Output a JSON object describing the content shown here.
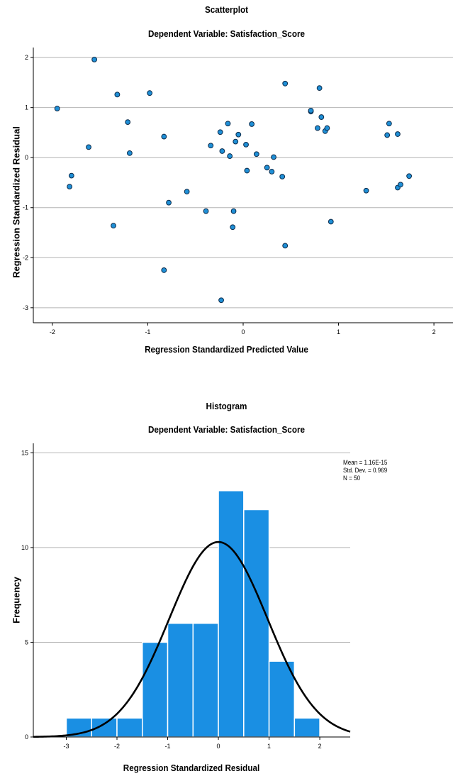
{
  "scatterplot": {
    "title": "Scatterplot",
    "subtitle": "Dependent Variable: Satisfaction_Score",
    "xlabel": "Regression Standardized Predicted Value",
    "ylabel": "Regression Standardized Residual"
  },
  "histogram": {
    "title": "Histogram",
    "subtitle": "Dependent Variable: Satisfaction_Score",
    "xlabel": "Regression Standardized Residual",
    "ylabel": "Frequency",
    "stats": {
      "mean": "Mean = 1.16E-15",
      "std": "Std. Dev. = 0.969",
      "n": "N = 50"
    }
  },
  "colors": {
    "point_fill": "#1f8fd6",
    "point_stroke": "#0b2a4a",
    "bar_fill": "#1a8fe3",
    "bar_stroke": "#ffffff",
    "gridline": "#b4b4b4",
    "curve": "#000000"
  },
  "chart_data": [
    {
      "type": "scatter",
      "title": "Scatterplot",
      "subtitle": "Dependent Variable: Satisfaction_Score",
      "xlabel": "Regression Standardized Predicted Value",
      "ylabel": "Regression Standardized Residual",
      "xlim": [
        -2.2,
        2.2
      ],
      "ylim": [
        -3.3,
        2.2
      ],
      "xticks": [
        -2,
        -1,
        0,
        1,
        2
      ],
      "yticks": [
        -3,
        -2,
        -1,
        0,
        1,
        2
      ],
      "grid": "horizontal",
      "points": [
        {
          "x": -1.95,
          "y": 0.98
        },
        {
          "x": -1.56,
          "y": 1.96
        },
        {
          "x": -1.8,
          "y": -0.36
        },
        {
          "x": -1.82,
          "y": -0.58
        },
        {
          "x": -1.62,
          "y": 0.21
        },
        {
          "x": -1.32,
          "y": 1.26
        },
        {
          "x": -1.21,
          "y": 0.71
        },
        {
          "x": -1.19,
          "y": 0.09
        },
        {
          "x": -1.36,
          "y": -1.36
        },
        {
          "x": -0.98,
          "y": 1.29
        },
        {
          "x": -0.83,
          "y": 0.42
        },
        {
          "x": -0.83,
          "y": -2.25
        },
        {
          "x": -0.78,
          "y": -0.9
        },
        {
          "x": -0.59,
          "y": -0.68
        },
        {
          "x": -0.39,
          "y": -1.07
        },
        {
          "x": -0.34,
          "y": 0.24
        },
        {
          "x": -0.24,
          "y": 0.51
        },
        {
          "x": -0.22,
          "y": 0.13
        },
        {
          "x": -0.16,
          "y": 0.68
        },
        {
          "x": -0.14,
          "y": 0.03
        },
        {
          "x": -0.1,
          "y": -1.07
        },
        {
          "x": -0.11,
          "y": -1.39
        },
        {
          "x": -0.08,
          "y": 0.32
        },
        {
          "x": -0.05,
          "y": 0.46
        },
        {
          "x": -0.23,
          "y": -2.85
        },
        {
          "x": 0.03,
          "y": 0.26
        },
        {
          "x": 0.04,
          "y": -0.26
        },
        {
          "x": 0.09,
          "y": 0.67
        },
        {
          "x": 0.14,
          "y": 0.07
        },
        {
          "x": 0.25,
          "y": -0.2
        },
        {
          "x": 0.3,
          "y": -0.28
        },
        {
          "x": 0.32,
          "y": 0.01
        },
        {
          "x": 0.41,
          "y": -0.38
        },
        {
          "x": 0.44,
          "y": 1.48
        },
        {
          "x": 0.44,
          "y": -1.76
        },
        {
          "x": 0.71,
          "y": 0.92
        },
        {
          "x": 0.71,
          "y": 0.94
        },
        {
          "x": 0.78,
          "y": 0.59
        },
        {
          "x": 0.8,
          "y": 1.39
        },
        {
          "x": 0.82,
          "y": 0.81
        },
        {
          "x": 0.86,
          "y": 0.53
        },
        {
          "x": 0.88,
          "y": 0.59
        },
        {
          "x": 0.92,
          "y": -1.28
        },
        {
          "x": 1.29,
          "y": -0.66
        },
        {
          "x": 1.51,
          "y": 0.45
        },
        {
          "x": 1.53,
          "y": 0.68
        },
        {
          "x": 1.62,
          "y": 0.47
        },
        {
          "x": 1.62,
          "y": -0.6
        },
        {
          "x": 1.65,
          "y": -0.54
        },
        {
          "x": 1.74,
          "y": -0.37
        }
      ]
    },
    {
      "type": "bar",
      "subtype": "histogram",
      "title": "Histogram",
      "subtitle": "Dependent Variable: Satisfaction_Score",
      "xlabel": "Regression Standardized Residual",
      "ylabel": "Frequency",
      "xlim": [
        -3.65,
        2.6
      ],
      "ylim": [
        0,
        15.5
      ],
      "xticks": [
        -3,
        -2,
        -1,
        0,
        1,
        2
      ],
      "yticks": [
        0,
        5,
        10,
        15
      ],
      "grid": "horizontal",
      "bin_width": 0.5,
      "bins": [
        {
          "start": -3.0,
          "end": -2.5,
          "count": 1
        },
        {
          "start": -2.5,
          "end": -2.0,
          "count": 1
        },
        {
          "start": -2.0,
          "end": -1.5,
          "count": 1
        },
        {
          "start": -1.5,
          "end": -1.0,
          "count": 5
        },
        {
          "start": -1.0,
          "end": -0.5,
          "count": 6
        },
        {
          "start": -0.5,
          "end": 0.0,
          "count": 6
        },
        {
          "start": 0.0,
          "end": 0.5,
          "count": 13
        },
        {
          "start": 0.5,
          "end": 1.0,
          "count": 12
        },
        {
          "start": 1.0,
          "end": 1.5,
          "count": 4
        },
        {
          "start": 1.5,
          "end": 2.0,
          "count": 1
        }
      ],
      "normal_curve": {
        "mean": 0,
        "std": 0.969,
        "n": 50
      },
      "legend_position": "top-right"
    }
  ]
}
